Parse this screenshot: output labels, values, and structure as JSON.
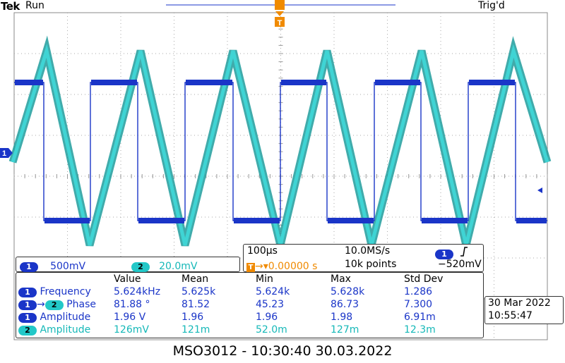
{
  "header": {
    "brand": "Tek",
    "run_state": "Run",
    "trigger_state": "Trig'd"
  },
  "markers": {
    "ch1_ground": "1",
    "trigger_pos": "T"
  },
  "channels": [
    {
      "number": "1",
      "scale": "500mV",
      "color": "#1a35c8"
    },
    {
      "number": "2",
      "scale": "20.0mV",
      "color": "#22c8c8"
    }
  ],
  "timebase": {
    "time_div": "100µs",
    "sample_rate": "10.0MS/s",
    "trigger_marker": "T",
    "delay": "0.00000 s",
    "record_length": "10k points",
    "trigger_channel": "1",
    "trigger_slope_icon": "rising-edge-icon",
    "trigger_level": "−520mV"
  },
  "measurements": {
    "headers": [
      "Value",
      "Mean",
      "Min",
      "Max",
      "Std Dev"
    ],
    "rows": [
      {
        "source": "1",
        "source2": "",
        "label": "Frequency",
        "value": "5.624kHz",
        "mean": "5.625k",
        "min": "5.624k",
        "max": "5.628k",
        "std": "1.286"
      },
      {
        "source": "1",
        "source2": "2",
        "label": "Phase",
        "value": "81.88 °",
        "mean": "81.52",
        "min": "45.23",
        "max": "86.73",
        "std": "7.300"
      },
      {
        "source": "1",
        "source2": "",
        "label": "Amplitude",
        "value": "1.96 V",
        "mean": "1.96",
        "min": "1.96",
        "max": "1.98",
        "std": "6.91m"
      },
      {
        "source": "2",
        "source2": "",
        "label": "Amplitude",
        "value": "126mV",
        "mean": "121m",
        "min": "52.0m",
        "max": "127m",
        "std": "12.3m"
      }
    ]
  },
  "clock": {
    "date": "30 Mar 2022",
    "time": "10:55:47"
  },
  "footer": {
    "caption": "MSO3012 - 10:30:40   30.03.2022"
  },
  "colors": {
    "ch1": "#1a35c8",
    "ch2": "#22c8c8",
    "trigger": "#f08a00"
  }
}
